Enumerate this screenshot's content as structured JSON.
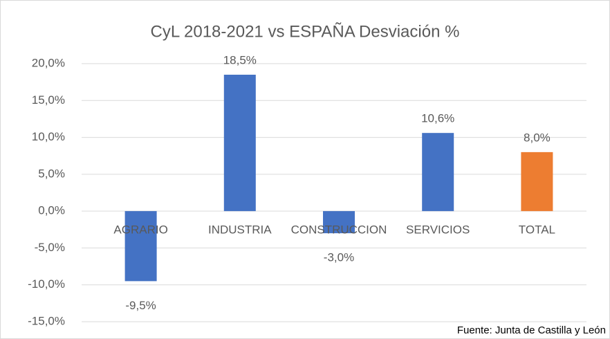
{
  "chart_data": {
    "type": "bar",
    "title": "CyL 2018-2021 vs ESPAÑA Desviación %",
    "categories": [
      "AGRARIO",
      "INDUSTRIA",
      "CONSTRUCCION",
      "SERVICIOS",
      "TOTAL"
    ],
    "values": [
      -9.5,
      18.5,
      -3.0,
      10.6,
      8.0
    ],
    "value_labels": [
      "-9,5%",
      "18,5%",
      "-3,0%",
      "10,6%",
      "8,0%"
    ],
    "colors": [
      "#4472c4",
      "#4472c4",
      "#4472c4",
      "#4472c4",
      "#ed7d31"
    ],
    "ylim": [
      -15,
      20
    ],
    "yticks": [
      {
        "value": -15,
        "label": "-15,0%"
      },
      {
        "value": -10,
        "label": "-10,0%"
      },
      {
        "value": -5,
        "label": "-5,0%"
      },
      {
        "value": 0,
        "label": "0,0%"
      },
      {
        "value": 5,
        "label": "5,0%"
      },
      {
        "value": 10,
        "label": "10,0%"
      },
      {
        "value": 15,
        "label": "15,0%"
      },
      {
        "value": 20,
        "label": "20,0%"
      }
    ],
    "grid": true,
    "source": "Fuente: Junta de Castilla y León"
  }
}
